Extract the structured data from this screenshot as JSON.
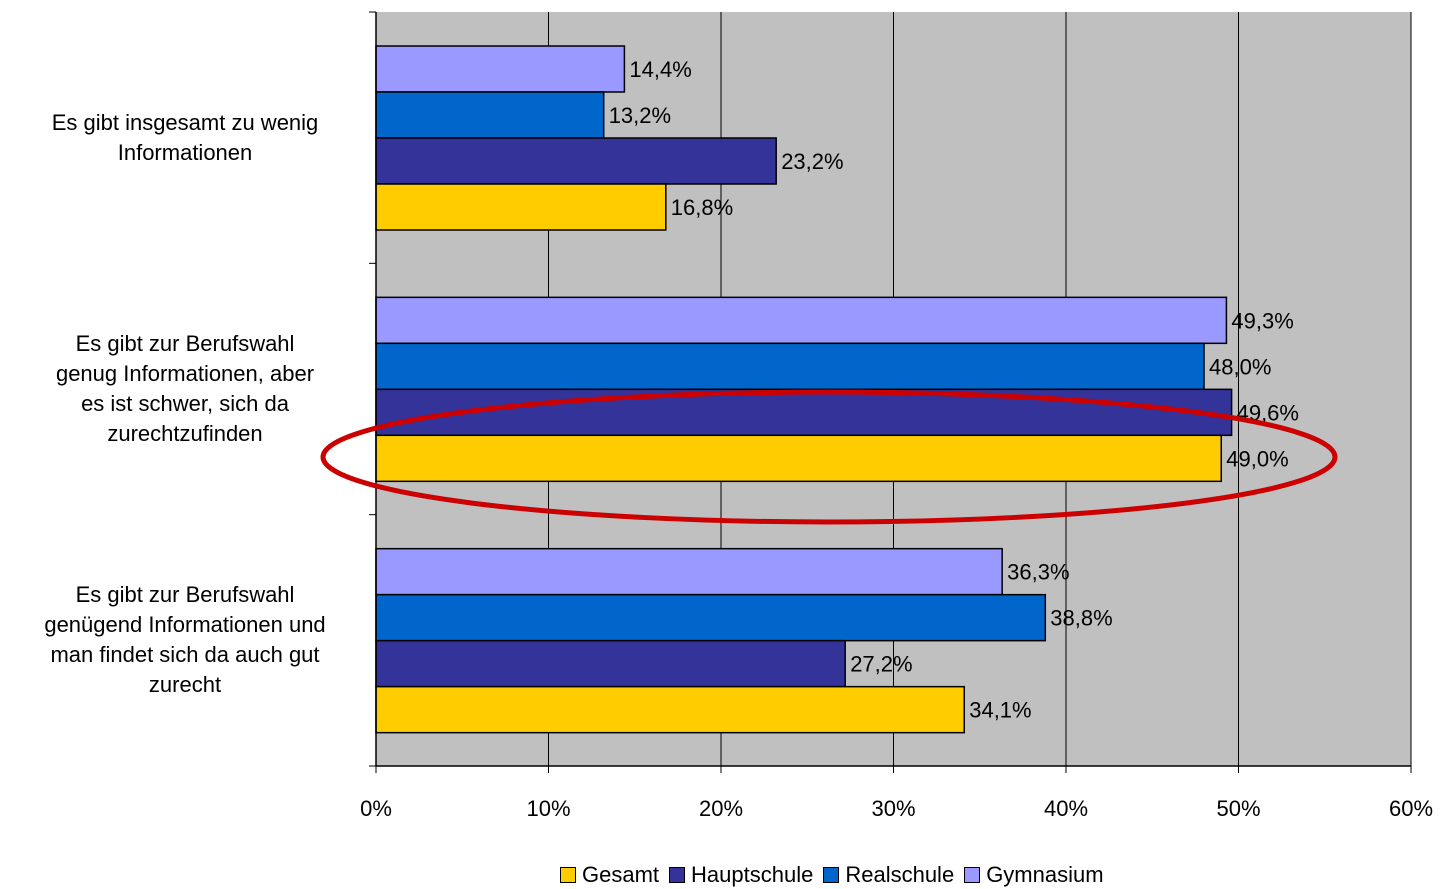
{
  "chart_data": {
    "type": "bar",
    "orientation": "horizontal",
    "categories": [
      "Es gibt insgesamt zu wenig Informationen",
      "Es gibt zur Berufswahl genug Informationen, aber es ist schwer, sich da zurechtzufinden",
      "Es gibt zur Berufswahl genügend Informationen und man findet sich da auch gut zurecht"
    ],
    "category_lines": [
      [
        "Es gibt insgesamt zu wenig",
        "Informationen"
      ],
      [
        "Es gibt zur Berufswahl",
        "genug Informationen, aber",
        "es ist schwer, sich da",
        "zurechtzufinden"
      ],
      [
        "Es gibt zur Berufswahl",
        "genügend Informationen und",
        "man findet sich da auch gut",
        "zurecht"
      ]
    ],
    "series": [
      {
        "name": "Gesamt",
        "color": "#FFCC00",
        "values": [
          16.8,
          49.0,
          34.1
        ],
        "labels": [
          "16,8%",
          "49,0%",
          "34,1%"
        ]
      },
      {
        "name": "Hauptschule",
        "color": "#333399",
        "values": [
          23.2,
          49.6,
          27.2
        ],
        "labels": [
          "23,2%",
          "49,6%",
          "27,2%"
        ]
      },
      {
        "name": "Realschule",
        "color": "#0066CC",
        "values": [
          13.2,
          48.0,
          38.8
        ],
        "labels": [
          "13,2%",
          "48,0%",
          "38,8%"
        ]
      },
      {
        "name": "Gymnasium",
        "color": "#9999FF",
        "values": [
          14.4,
          49.3,
          36.3
        ],
        "labels": [
          "14,4%",
          "49,3%",
          "36,3%"
        ]
      }
    ],
    "xlim": [
      0,
      60
    ],
    "x_ticks": [
      0,
      10,
      20,
      30,
      40,
      50,
      60
    ],
    "x_tick_labels": [
      "0%",
      "10%",
      "20%",
      "30%",
      "40%",
      "50%",
      "60%"
    ],
    "grid": true,
    "plot_background": "#C0C0C0",
    "highlight": {
      "category_index": 1,
      "shape": "ellipse",
      "color": "#CC0000"
    },
    "legend_position": "bottom"
  }
}
